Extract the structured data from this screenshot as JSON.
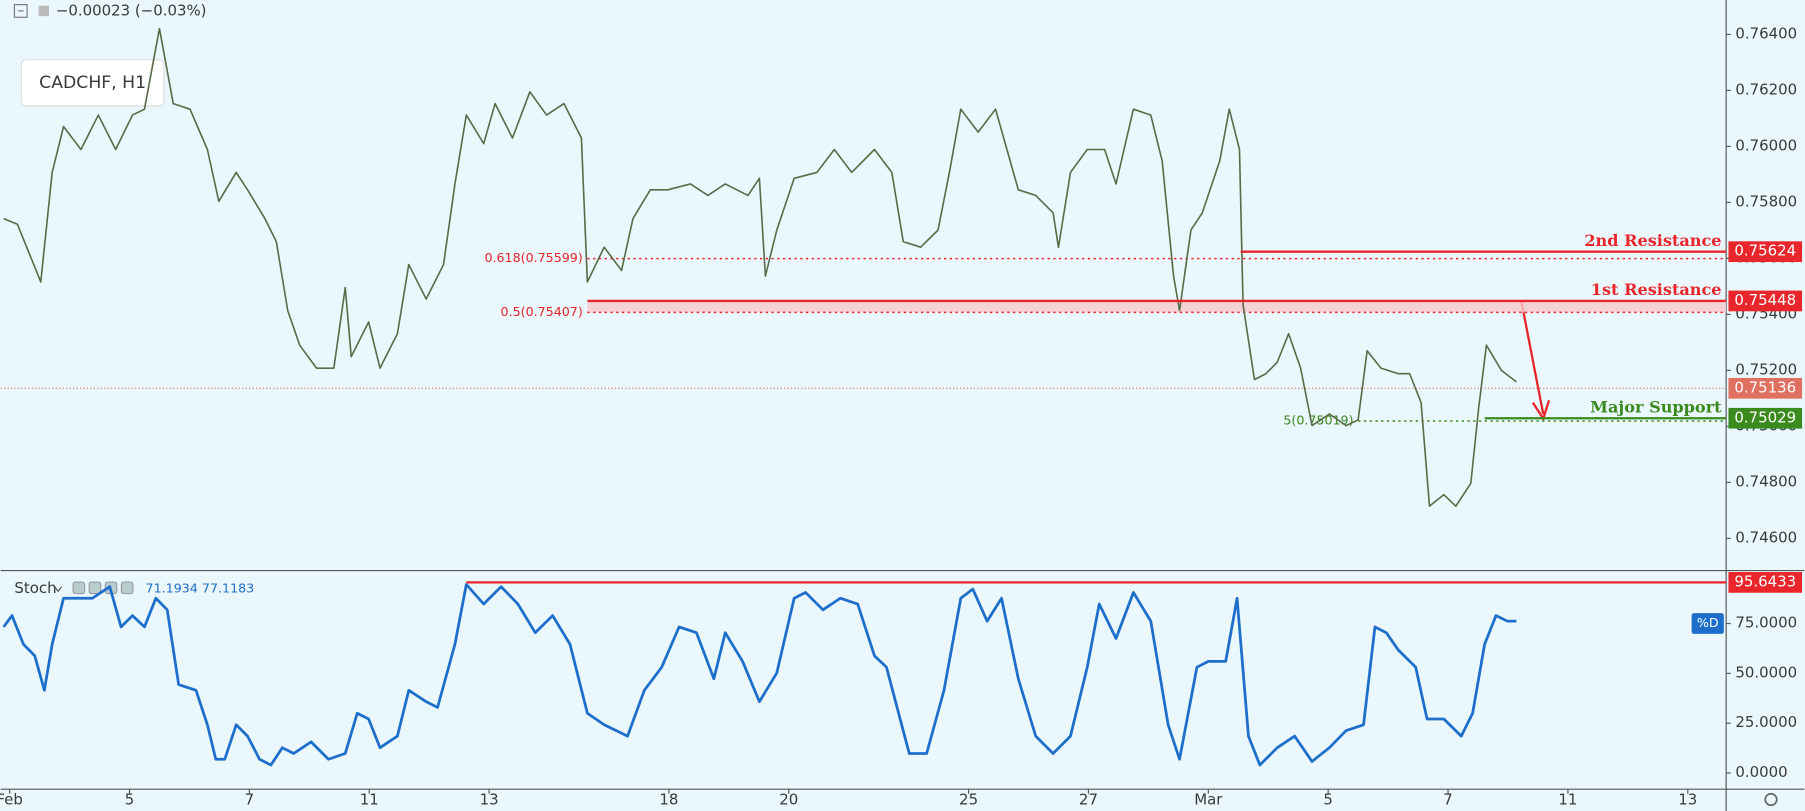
{
  "chart_data": [
    {
      "type": "line",
      "title": "CADCHF, H1",
      "subtitle": "−0.00023 (−0.03%)",
      "x": [
        -0.1,
        0.13,
        0.52,
        0.71,
        0.9,
        1.19,
        1.48,
        1.77,
        2.05,
        2.25,
        2.5,
        2.73,
        3.01,
        3.3,
        3.49,
        3.78,
        3.97,
        4.26,
        4.45,
        4.64,
        4.84,
        5.12,
        5.41,
        5.6,
        5.7,
        5.99,
        6.18,
        6.47,
        6.66,
        6.95,
        7.24,
        7.43,
        7.62,
        7.91,
        8.1,
        8.39,
        8.68,
        8.96,
        9.25,
        9.54,
        9.64,
        9.92,
        10.21,
        10.4,
        10.69,
        10.98,
        11.36,
        11.65,
        11.94,
        12.32,
        12.51,
        12.61,
        12.8,
        13.09,
        13.47,
        13.76,
        14.05,
        14.43,
        14.72,
        14.91,
        15.2,
        15.49,
        15.68,
        15.87,
        16.16,
        16.45,
        16.64,
        16.83,
        17.12,
        17.41,
        17.5,
        17.7,
        17.98,
        18.27,
        18.46,
        18.75,
        19.04,
        19.23,
        19.42,
        19.52,
        19.71,
        19.9,
        20.19,
        20.35,
        20.52,
        20.58,
        20.77,
        20.96,
        21.15,
        21.34,
        21.54,
        21.73,
        22.02,
        22.3,
        22.5,
        22.65,
        22.88,
        23.17,
        23.36,
        23.55,
        23.69,
        23.93,
        24.13,
        24.38,
        24.51,
        24.64,
        24.89,
        25.14
      ],
      "series": [
        {
          "color": "#5a6b48",
          "values": [
            0.75742,
            0.75722,
            0.75516,
            0.75907,
            0.76071,
            0.75989,
            0.76112,
            0.75989,
            0.76112,
            0.76133,
            0.76421,
            0.76153,
            0.76133,
            0.75989,
            0.75804,
            0.75907,
            0.75845,
            0.75742,
            0.7566,
            0.75414,
            0.7529,
            0.75208,
            0.75208,
            0.75496,
            0.75249,
            0.75373,
            0.75208,
            0.75331,
            0.75578,
            0.75455,
            0.75578,
            0.75866,
            0.76112,
            0.7601,
            0.76153,
            0.7603,
            0.76195,
            0.76112,
            0.76153,
            0.7603,
            0.75516,
            0.7564,
            0.75557,
            0.75742,
            0.75845,
            0.75845,
            0.75866,
            0.75825,
            0.75866,
            0.75825,
            0.75886,
            0.75537,
            0.75701,
            0.75886,
            0.75907,
            0.75989,
            0.75907,
            0.75989,
            0.75907,
            0.7566,
            0.7564,
            0.75701,
            0.75907,
            0.76133,
            0.76051,
            0.76133,
            0.75989,
            0.75845,
            0.75825,
            0.75763,
            0.7564,
            0.75907,
            0.75989,
            0.75989,
            0.75866,
            0.76133,
            0.76112,
            0.75948,
            0.75537,
            0.75414,
            0.75701,
            0.75763,
            0.75948,
            0.76133,
            0.75989,
            0.75434,
            0.75167,
            0.75188,
            0.75229,
            0.75331,
            0.75208,
            0.75003,
            0.75044,
            0.75003,
            0.75023,
            0.7527,
            0.75208,
            0.75188,
            0.75188,
            0.75085,
            0.74715,
            0.74756,
            0.74715,
            0.74797,
            0.75064,
            0.7529,
            0.752,
            0.75159
          ]
        }
      ],
      "xlim": [
        -0.15,
        28.64
      ],
      "xticks": [
        {
          "value": 0,
          "label": "Feb"
        },
        {
          "value": 2,
          "label": "5"
        },
        {
          "value": 4,
          "label": "7"
        },
        {
          "value": 6,
          "label": "11"
        },
        {
          "value": 8,
          "label": "13"
        },
        {
          "value": 11,
          "label": "18"
        },
        {
          "value": 13,
          "label": "20"
        },
        {
          "value": 16,
          "label": "25"
        },
        {
          "value": 18,
          "label": "27"
        },
        {
          "value": 20,
          "label": "Mar"
        },
        {
          "value": 22,
          "label": "5"
        },
        {
          "value": 24,
          "label": "7"
        },
        {
          "value": 26,
          "label": "11"
        },
        {
          "value": 28,
          "label": "13"
        }
      ],
      "ylim": [
        0.74489,
        0.76523
      ],
      "yticks": [
        {
          "value": 0.764,
          "label": "0.76400"
        },
        {
          "value": 0.762,
          "label": "0.76200"
        },
        {
          "value": 0.76,
          "label": "0.76000"
        },
        {
          "value": 0.758,
          "label": "0.75800"
        },
        {
          "value": 0.756,
          "label": "0.75600"
        },
        {
          "value": 0.754,
          "label": "0.75400"
        },
        {
          "value": 0.752,
          "label": "0.75200"
        },
        {
          "value": 0.75,
          "label": "0.75000"
        },
        {
          "value": 0.748,
          "label": "0.74800"
        },
        {
          "value": 0.746,
          "label": "0.74600"
        }
      ],
      "grid": false,
      "band": {
        "low": 0.75407,
        "high": 0.75448,
        "x_start": 9.64,
        "color": "#f6c9cc"
      },
      "levels": [
        {
          "label": "2nd Resistance",
          "value": 0.75624,
          "color": "#e8262b",
          "x_start": 20.54
        },
        {
          "label": "1st Resistance",
          "value": 0.75448,
          "color": "#e8262b",
          "x_start": 9.64
        },
        {
          "label": "Major Support",
          "value": 0.75029,
          "color": "#3a8a1e",
          "x_start": 24.61
        }
      ],
      "fib": [
        {
          "label": "0.618(0.75599)",
          "value": 0.75599,
          "color": "#e8262b",
          "x_start": 9.64
        },
        {
          "label": "0.5(0.75407)",
          "value": 0.75407,
          "color": "#e8262b",
          "x_start": 9.64
        },
        {
          "label": "5(0.75019)",
          "value": 0.75019,
          "color": "#3a8a1e",
          "x_start": 22.5
        }
      ],
      "last": {
        "value": 0.75136,
        "color": "#e0705f"
      }
    },
    {
      "type": "line",
      "title": "Stoch",
      "readout": [
        71.1934,
        77.1183
      ],
      "x": [
        -0.1,
        0.04,
        0.23,
        0.42,
        0.58,
        0.71,
        0.9,
        1.09,
        1.38,
        1.67,
        1.86,
        2.05,
        2.25,
        2.44,
        2.63,
        2.82,
        3.11,
        3.3,
        3.44,
        3.59,
        3.78,
        3.97,
        4.17,
        4.36,
        4.55,
        4.74,
        5.03,
        5.32,
        5.6,
        5.8,
        5.99,
        6.18,
        6.47,
        6.66,
        6.95,
        7.14,
        7.43,
        7.62,
        7.91,
        8.2,
        8.48,
        8.77,
        9.06,
        9.35,
        9.64,
        9.92,
        10.31,
        10.59,
        10.88,
        11.17,
        11.46,
        11.75,
        11.94,
        12.23,
        12.51,
        12.8,
        13.09,
        13.28,
        13.57,
        13.86,
        14.15,
        14.43,
        14.63,
        15.01,
        15.3,
        15.59,
        15.87,
        16.07,
        16.31,
        16.55,
        16.83,
        17.12,
        17.41,
        17.7,
        17.98,
        18.18,
        18.46,
        18.75,
        19.04,
        19.33,
        19.52,
        19.81,
        20,
        20.29,
        20.48,
        20.67,
        20.86,
        21.15,
        21.44,
        21.73,
        22.02,
        22.3,
        22.59,
        22.78,
        22.97,
        23.17,
        23.46,
        23.65,
        23.93,
        24.22,
        24.41,
        24.61,
        24.8,
        24.99,
        25.14
      ],
      "series": [
        {
          "name": "%D",
          "color": "#1e6fcc",
          "values": [
            73.3,
            79.0,
            64.6,
            58.8,
            41.5,
            64.6,
            87.7,
            87.7,
            87.7,
            93.5,
            73.3,
            79.0,
            73.3,
            87.7,
            81.9,
            44.4,
            41.5,
            24.2,
            6.9,
            6.9,
            24.2,
            18.5,
            6.9,
            4.0,
            12.7,
            9.8,
            15.6,
            6.9,
            9.8,
            30.0,
            27.1,
            12.7,
            18.5,
            41.5,
            35.8,
            32.9,
            64.6,
            94.6,
            84.8,
            93.5,
            84.8,
            70.4,
            79.0,
            64.6,
            30.0,
            24.2,
            18.5,
            41.5,
            53.1,
            73.3,
            70.4,
            47.3,
            70.4,
            56.0,
            35.8,
            50.2,
            87.7,
            90.6,
            81.9,
            87.7,
            84.8,
            58.8,
            53.1,
            9.8,
            9.8,
            41.5,
            87.7,
            92.3,
            76.2,
            87.7,
            47.3,
            18.5,
            9.8,
            18.5,
            53.1,
            84.8,
            67.5,
            90.6,
            76.2,
            24.2,
            6.9,
            53.1,
            56.0,
            56.0,
            87.7,
            18.5,
            4.0,
            12.7,
            18.5,
            5.8,
            12.7,
            21.3,
            24.2,
            73.3,
            70.4,
            61.7,
            53.1,
            27.1,
            27.1,
            18.5,
            30.0,
            64.6,
            79.0,
            76.2,
            76.2
          ]
        }
      ],
      "xlim": [
        -0.15,
        28.64
      ],
      "ylim": [
        -8.1,
        101
      ],
      "yticks": [
        {
          "value": 75,
          "label": "75.0000"
        },
        {
          "value": 50,
          "label": "50.0000"
        },
        {
          "value": 25,
          "label": "25.0000"
        },
        {
          "value": 0,
          "label": "0.0000"
        }
      ],
      "grid": false,
      "levels": [
        {
          "value": 95.6433,
          "color": "#e8262b",
          "x_start": 7.62
        }
      ]
    }
  ]
}
